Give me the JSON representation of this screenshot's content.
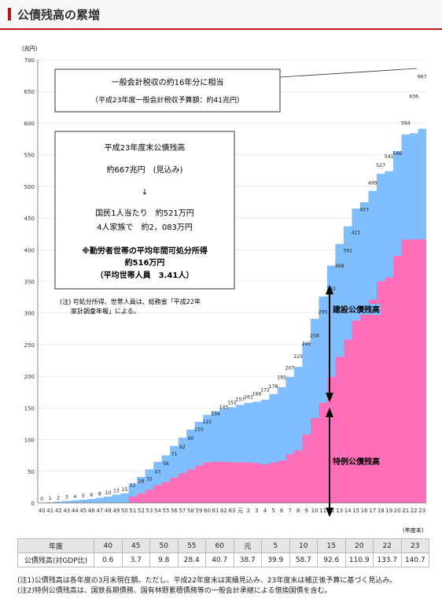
{
  "header": {
    "title": "公債残高の累増"
  },
  "chart_data": {
    "type": "area",
    "ylabel": "(兆円)",
    "xlabel": "(年度末)",
    "ylim": [
      0,
      700
    ],
    "yticks": [
      0,
      50,
      100,
      150,
      200,
      250,
      300,
      350,
      400,
      450,
      500,
      550,
      600,
      650,
      700
    ],
    "categories": [
      "40",
      "41",
      "42",
      "43",
      "44",
      "45",
      "46",
      "47",
      "48",
      "49",
      "50",
      "51",
      "52",
      "53",
      "54",
      "55",
      "56",
      "57",
      "58",
      "59",
      "60",
      "61",
      "62",
      "63",
      "元",
      "2",
      "3",
      "4",
      "5",
      "6",
      "7",
      "8",
      "9",
      "10",
      "11",
      "12",
      "13",
      "14",
      "15",
      "16",
      "17",
      "18",
      "19",
      "20",
      "21",
      "22",
      "23"
    ],
    "series": [
      {
        "name": "建設公債残高",
        "color": "#7fbfff",
        "values": [
          0,
          1,
          2,
          3,
          4,
          5,
          6,
          8,
          10,
          13,
          15,
          20,
          26,
          32,
          37,
          42,
          50,
          56,
          63,
          69,
          75,
          80,
          84,
          87,
          91,
          94,
          97,
          102,
          108,
          116,
          122,
          132,
          145,
          157,
          168,
          176,
          178,
          179,
          177,
          175,
          172,
          170,
          168,
          166,
          166,
          168,
          175
        ]
      },
      {
        "name": "特例公債残高",
        "color": "#ff6fb9",
        "values": [
          0,
          0,
          0,
          0,
          0,
          0,
          0,
          0,
          0,
          0,
          0,
          10,
          15,
          21,
          28,
          33,
          40,
          47,
          53,
          59,
          64,
          65,
          65,
          64,
          64,
          64,
          63,
          61,
          64,
          67,
          77,
          83,
          108,
          134,
          158,
          199,
          231,
          258,
          288,
          300,
          321,
          350,
          356,
          390,
          416,
          416,
          416
        ]
      },
      {
        "name": "公債残高",
        "color": "#333333",
        "values": [
          0,
          1,
          2,
          3,
          4,
          5,
          6,
          8,
          10,
          13,
          15,
          22,
          28,
          32,
          43,
          56,
          71,
          82,
          96,
          110,
          122,
          134,
          145,
          152,
          157,
          161,
          166,
          172,
          178,
          192,
          207,
          225,
          245,
          258,
          295,
          332,
          368,
          392,
          421,
          457,
          499,
          527,
          541,
          546,
          594,
          636,
          667
        ]
      }
    ],
    "data_labels": {
      "total": [
        "0",
        "1",
        "2",
        "2",
        "3",
        "4",
        "6",
        "8",
        "10",
        "15",
        "22",
        "32",
        "43",
        "56",
        "71",
        "82",
        "96",
        "110",
        "122",
        "134",
        "145",
        "152",
        "157",
        "161",
        "166",
        "172",
        "178",
        "192",
        "207",
        "225",
        "245",
        "258",
        "295",
        "332",
        "368",
        "392",
        "421",
        "457",
        "499",
        "527",
        "532",
        "541",
        "546",
        "594",
        "636",
        "667"
      ],
      "construction": [
        "13",
        "17",
        "22",
        "28",
        "35",
        "42",
        "49",
        "56",
        "63",
        "69",
        "75",
        "80",
        "81",
        "87",
        "91",
        "97",
        "102",
        "108",
        "116",
        "128",
        "155",
        "168",
        "175",
        "187",
        "197",
        "209",
        "176",
        "226",
        "241",
        "248",
        "232",
        "237",
        "243",
        "225",
        "246",
        "251"
      ],
      "special": [
        "2",
        "10",
        "15",
        "21",
        "28",
        "33",
        "40",
        "47",
        "53",
        "59",
        "62",
        "65",
        "65",
        "64",
        "64",
        "63",
        "61",
        "64",
        "67",
        "77",
        "83",
        "108",
        "134",
        "158",
        "199",
        "231",
        "258",
        "288",
        "300",
        "321",
        "356",
        "390",
        "416"
      ]
    },
    "labels": {
      "construction_label": "建設公債残高",
      "special_label": "特例公債残高"
    },
    "annotation_box1": {
      "line1": "一般会計税収の約16年分に相当",
      "line2": "（平成23年度一般会計税収予算額：約41兆円）"
    },
    "annotation_box2": {
      "line1": "平成23年度末公債残高",
      "line2": "約667兆円　(見込み)",
      "line3": "↓",
      "line4": "国民1人当たり　約521万円",
      "line5": "4人家族で　約2，083万円",
      "line6": "※勤労者世帯の平均年間可処分所得",
      "line7": "約516万円",
      "line8": "（平均世帯人員　3.41人）"
    },
    "note": [
      "(注) 可処分所得、世帯人員は、総務省「平成22年",
      "家計調査年報」による。"
    ]
  },
  "table": {
    "headers": [
      "年度",
      "40",
      "45",
      "50",
      "55",
      "60",
      "元",
      "5",
      "10",
      "15",
      "20",
      "22",
      "23"
    ],
    "row_label": "公債残高(対GDP比)",
    "values": [
      "0.6",
      "3.7",
      "9.8",
      "28.4",
      "40.7",
      "38.7",
      "39.9",
      "58.7",
      "92.6",
      "110.9",
      "133.7",
      "140.7"
    ]
  },
  "notes": [
    "(注1)公債残高は各年度の3月末現在額。ただし、平成22年度末は実績見込み、23年度末は補正後予算に基づく見込み。",
    "(注2)特例公債残高は、国鉄長期債務、国有林野累積債務等の一般会計承継による借換国債を含む。"
  ]
}
